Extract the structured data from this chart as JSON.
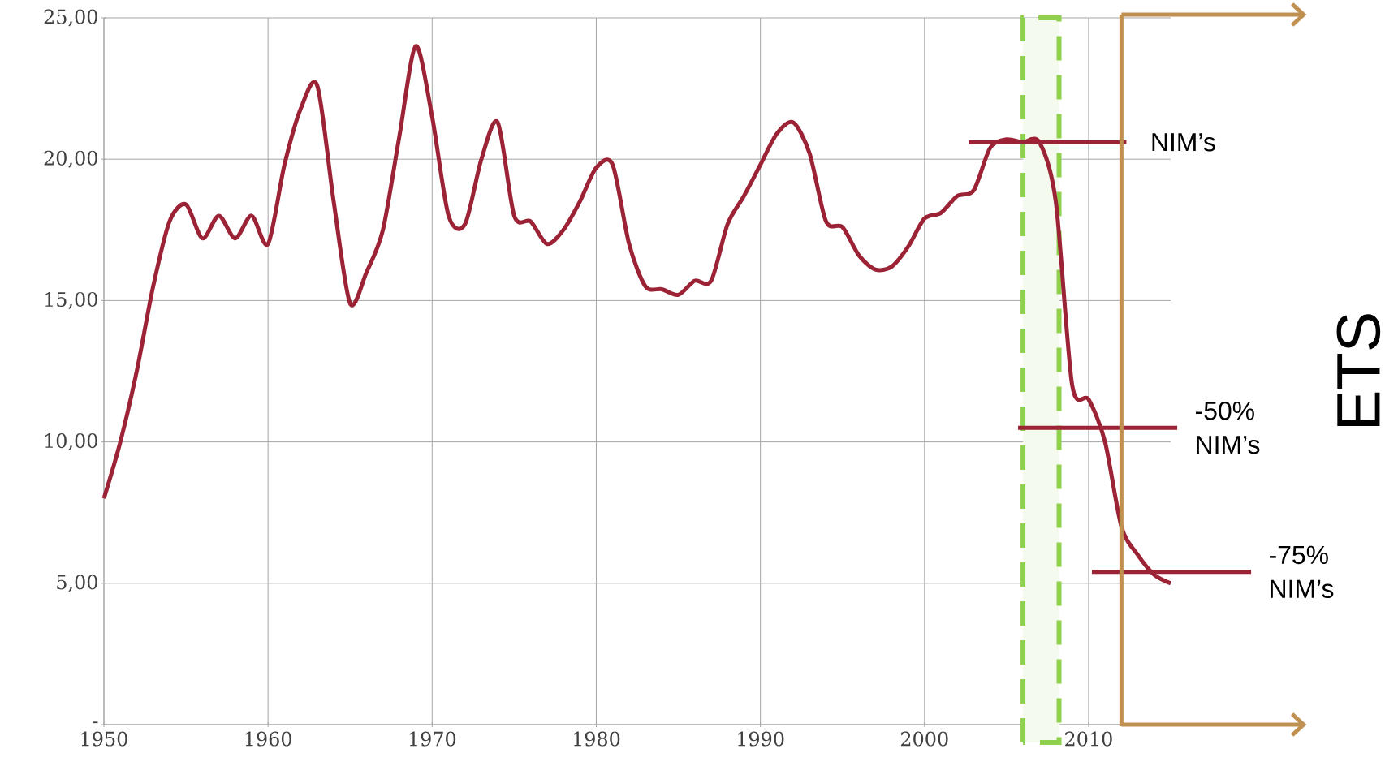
{
  "chart_data": {
    "type": "line",
    "x": [
      1950,
      1951,
      1952,
      1953,
      1954,
      1955,
      1956,
      1957,
      1958,
      1959,
      1960,
      1961,
      1962,
      1963,
      1964,
      1965,
      1966,
      1967,
      1968,
      1969,
      1970,
      1971,
      1972,
      1973,
      1974,
      1975,
      1976,
      1977,
      1978,
      1979,
      1980,
      1981,
      1982,
      1983,
      1984,
      1985,
      1986,
      1987,
      1988,
      1989,
      1990,
      1991,
      1992,
      1993,
      1994,
      1995,
      1996,
      1997,
      1998,
      1999,
      2000,
      2001,
      2002,
      2003,
      2004,
      2005,
      2006,
      2007,
      2008,
      2009,
      2010,
      2011,
      2012,
      2013,
      2014,
      2015
    ],
    "series": [
      {
        "color": "#9b2335",
        "values": [
          8.0,
          10.0,
          12.5,
          15.5,
          17.8,
          18.4,
          17.2,
          18.0,
          17.2,
          18.0,
          17.0,
          19.8,
          21.8,
          22.6,
          18.5,
          14.9,
          16.0,
          17.5,
          20.8,
          24.0,
          21.5,
          18.0,
          17.7,
          20.0,
          21.3,
          18.0,
          17.8,
          17.0,
          17.5,
          18.5,
          19.7,
          19.8,
          17.0,
          15.5,
          15.4,
          15.2,
          15.7,
          15.7,
          17.7,
          18.7,
          19.8,
          20.9,
          21.3,
          20.2,
          17.8,
          17.6,
          16.6,
          16.1,
          16.2,
          16.9,
          17.9,
          18.1,
          18.7,
          18.9,
          20.4,
          20.7,
          20.6,
          20.6,
          18.5,
          12.0,
          11.5,
          10.0,
          7.0,
          6.0,
          5.3,
          5.0
        ]
      }
    ],
    "xlim": [
      1950,
      2015
    ],
    "ylim": [
      0,
      25
    ],
    "xticks": [
      1950,
      1960,
      1970,
      1980,
      1990,
      2000,
      2010
    ],
    "yticks": [
      {
        "value": 0,
        "label": "-"
      },
      {
        "value": 5,
        "label": "5,00"
      },
      {
        "value": 10,
        "label": "10,00"
      },
      {
        "value": 15,
        "label": "15,00"
      },
      {
        "value": 20,
        "label": "20,00"
      },
      {
        "value": 25,
        "label": "25,00"
      }
    ],
    "grid": true,
    "marker": "none",
    "line_style": "solid",
    "ref_lines": [
      {
        "axis": "y",
        "value": 20.6,
        "label": "NIM’s",
        "color": "#9b2335"
      },
      {
        "axis": "y",
        "value": 10.5,
        "label": "-50% NIM’s",
        "color": "#9b2335"
      },
      {
        "axis": "y",
        "value": 5.4,
        "label": "-75% NIM’s",
        "color": "#9b2335"
      },
      {
        "axis": "x",
        "value": 2012,
        "color": "#c09050"
      }
    ],
    "bands": [
      {
        "axis": "x",
        "from": 2006,
        "to": 2008.2,
        "color": "#8fd14f"
      }
    ],
    "annotations": [
      "ETS"
    ]
  }
}
